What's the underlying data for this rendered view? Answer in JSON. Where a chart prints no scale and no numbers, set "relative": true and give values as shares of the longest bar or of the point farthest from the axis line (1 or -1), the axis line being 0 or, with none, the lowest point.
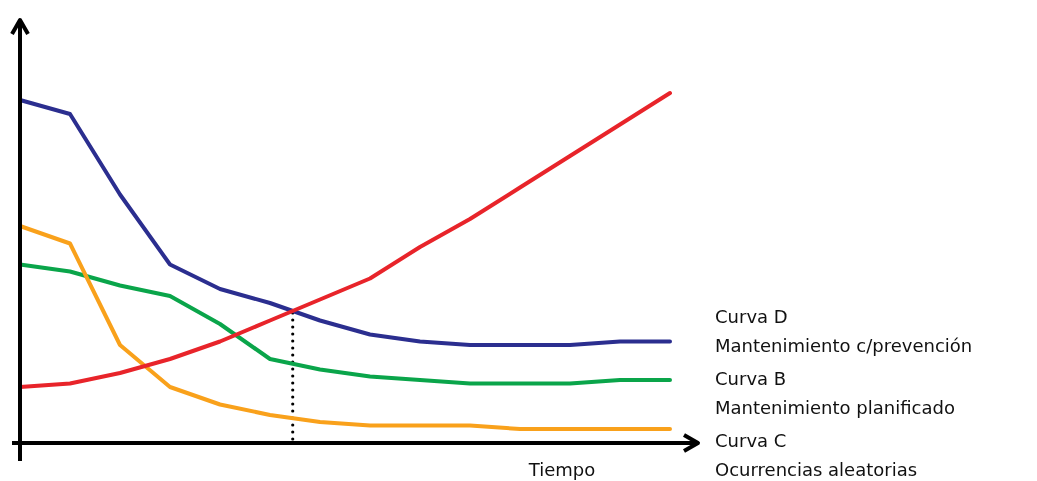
{
  "chart_data": {
    "type": "line",
    "relative": true,
    "xlabel": "Tiempo",
    "categories": [
      null,
      null,
      null,
      null,
      null,
      null,
      null,
      null,
      null,
      null,
      null,
      null,
      null,
      null
    ],
    "series": [
      {
        "name": "Curva D\nMantenimiento c/prevención",
        "color": "#2b2e8f",
        "values": [
          0.98,
          0.94,
          0.71,
          0.51,
          0.44,
          0.4,
          0.35,
          0.31,
          0.29,
          0.28,
          0.28,
          0.28,
          0.29,
          0.29
        ]
      },
      {
        "name": "Curva B\nMantenimiento planificado",
        "color": "#0aa54a",
        "values": [
          0.51,
          0.49,
          0.45,
          0.42,
          0.34,
          0.24,
          0.21,
          0.19,
          0.18,
          0.17,
          0.17,
          0.17,
          0.18,
          0.18
        ]
      },
      {
        "name": "Curva C\nOcurrencias aleatorias",
        "color": "#f9a11b",
        "values": [
          0.62,
          0.57,
          0.28,
          0.16,
          0.11,
          0.08,
          0.06,
          0.05,
          0.05,
          0.05,
          0.04,
          0.04,
          0.04,
          0.04
        ]
      },
      {
        "color": "#e8242a",
        "values": [
          0.16,
          0.17,
          0.2,
          0.24,
          0.29,
          0.35,
          0.41,
          0.47,
          0.56,
          0.64,
          0.73,
          0.82,
          0.91,
          1
        ]
      }
    ]
  }
}
